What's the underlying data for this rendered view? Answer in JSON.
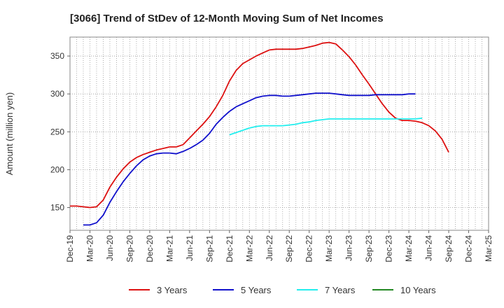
{
  "chart_data": {
    "type": "line",
    "title": "[3066]  Trend of StDev of 12-Month Moving Sum of Net Incomes",
    "ylabel": "Amount (million yen)",
    "xlabel": "",
    "ylim": [
      120,
      375
    ],
    "yticks": [
      150,
      200,
      250,
      300,
      350
    ],
    "xticks": [
      "Dec-19",
      "Mar-20",
      "Jun-20",
      "Sep-20",
      "Dec-20",
      "Mar-21",
      "Jun-21",
      "Sep-21",
      "Dec-21",
      "Mar-22",
      "Jun-22",
      "Sep-22",
      "Dec-22",
      "Mar-23",
      "Jun-23",
      "Sep-23",
      "Dec-23",
      "Mar-24",
      "Jun-24",
      "Sep-24",
      "Dec-24",
      "Mar-25"
    ],
    "grid": true,
    "legend_position": "bottom",
    "series": [
      {
        "name": "3 Years",
        "color": "#dd1111",
        "start_index": 0,
        "values": [
          152,
          152,
          151,
          150,
          151,
          160,
          177,
          190,
          201,
          210,
          216,
          220,
          223,
          226,
          228,
          230,
          230,
          233,
          242,
          251,
          260,
          270,
          283,
          298,
          317,
          331,
          340,
          345,
          350,
          354,
          358,
          359,
          359,
          359,
          359,
          360,
          362,
          364,
          367,
          368,
          366,
          358,
          349,
          338,
          325,
          313,
          300,
          287,
          276,
          268,
          265,
          265,
          264,
          262,
          258,
          251,
          240,
          223
        ]
      },
      {
        "name": "5 Years",
        "color": "#1111cc",
        "start_index": 2,
        "values": [
          127,
          127,
          130,
          140,
          157,
          171,
          184,
          195,
          205,
          213,
          218,
          221,
          222,
          222,
          221,
          224,
          228,
          233,
          239,
          248,
          260,
          269,
          277,
          283,
          287,
          291,
          295,
          297,
          298,
          298,
          297,
          297,
          298,
          299,
          300,
          301,
          301,
          301,
          300,
          299,
          298,
          298,
          298,
          298,
          299,
          299,
          299,
          299,
          299,
          300,
          300
        ]
      },
      {
        "name": "7 Years",
        "color": "#22eeee",
        "start_index": 24,
        "values": [
          246,
          249,
          252,
          255,
          257,
          258,
          258,
          258,
          258,
          259,
          260,
          262,
          263,
          265,
          266,
          267,
          267,
          267,
          267,
          267,
          267,
          267,
          267,
          267,
          267,
          267,
          267,
          267,
          267,
          268
        ]
      },
      {
        "name": "10 Years",
        "color": "#228822",
        "start_index": 0,
        "values": []
      }
    ]
  }
}
